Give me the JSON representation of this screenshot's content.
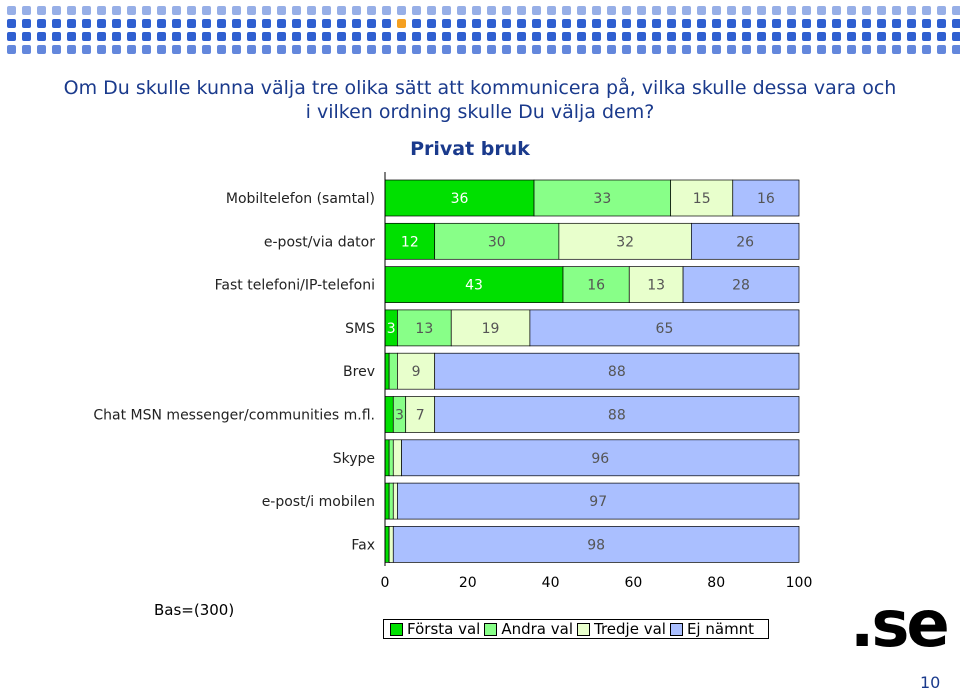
{
  "question": "Om Du skulle kunna välja tre olika sätt att kommunicera på, vilka skulle dessa vara och i vilken ordning skulle Du välja dem?",
  "chart_data": {
    "type": "bar",
    "orientation": "horizontal",
    "stacked": true,
    "title": "Privat bruk",
    "categories": [
      "Mobiltelefon (samtal)",
      "e-post/via dator",
      "Fast telefoni/IP-telefoni",
      "SMS",
      "Brev",
      "Chat MSN messenger/communities m.fl.",
      "Skype",
      "e-post/i mobilen",
      "Fax"
    ],
    "series": [
      {
        "name": "Första val",
        "color": "#00e000",
        "values": [
          36,
          12,
          43,
          3,
          1,
          2,
          1,
          1,
          1
        ]
      },
      {
        "name": "Andra val",
        "color": "#88ff88",
        "values": [
          33,
          30,
          16,
          13,
          2,
          3,
          1,
          1,
          0
        ]
      },
      {
        "name": "Tredje val",
        "color": "#e8ffcc",
        "values": [
          15,
          32,
          13,
          19,
          9,
          7,
          2,
          1,
          1
        ]
      },
      {
        "name": "Ej nämnt",
        "color": "#aabfff",
        "values": [
          16,
          26,
          28,
          65,
          88,
          88,
          96,
          97,
          98
        ]
      }
    ],
    "labels": [
      [
        "36",
        "33",
        "15",
        "16"
      ],
      [
        "12",
        "30",
        "32",
        "26"
      ],
      [
        "43",
        "16",
        "13",
        "28"
      ],
      [
        "3",
        "13",
        "19",
        "65"
      ],
      [
        "",
        "2",
        "9",
        "88"
      ],
      [
        "2",
        "3",
        "7",
        "88"
      ],
      [
        "",
        "1",
        "2",
        "96"
      ],
      [
        "",
        "1",
        "1",
        "97"
      ],
      [
        "",
        "",
        "1",
        "98"
      ]
    ],
    "label_colors": [
      "#ffffff",
      "#555555",
      "#555555",
      "#555555"
    ],
    "xlim": [
      0,
      100
    ],
    "xticks": [
      "0",
      "20",
      "40",
      "60",
      "80",
      "100"
    ],
    "legend_position": "bottom"
  },
  "base_note": "Bas=(300)",
  "logo_text": ".se",
  "page_number": "10",
  "colors": {
    "title_blue": "#1a3a8c",
    "dots_blue": "#2f5fd0",
    "dots_orange": "#f5a020"
  }
}
